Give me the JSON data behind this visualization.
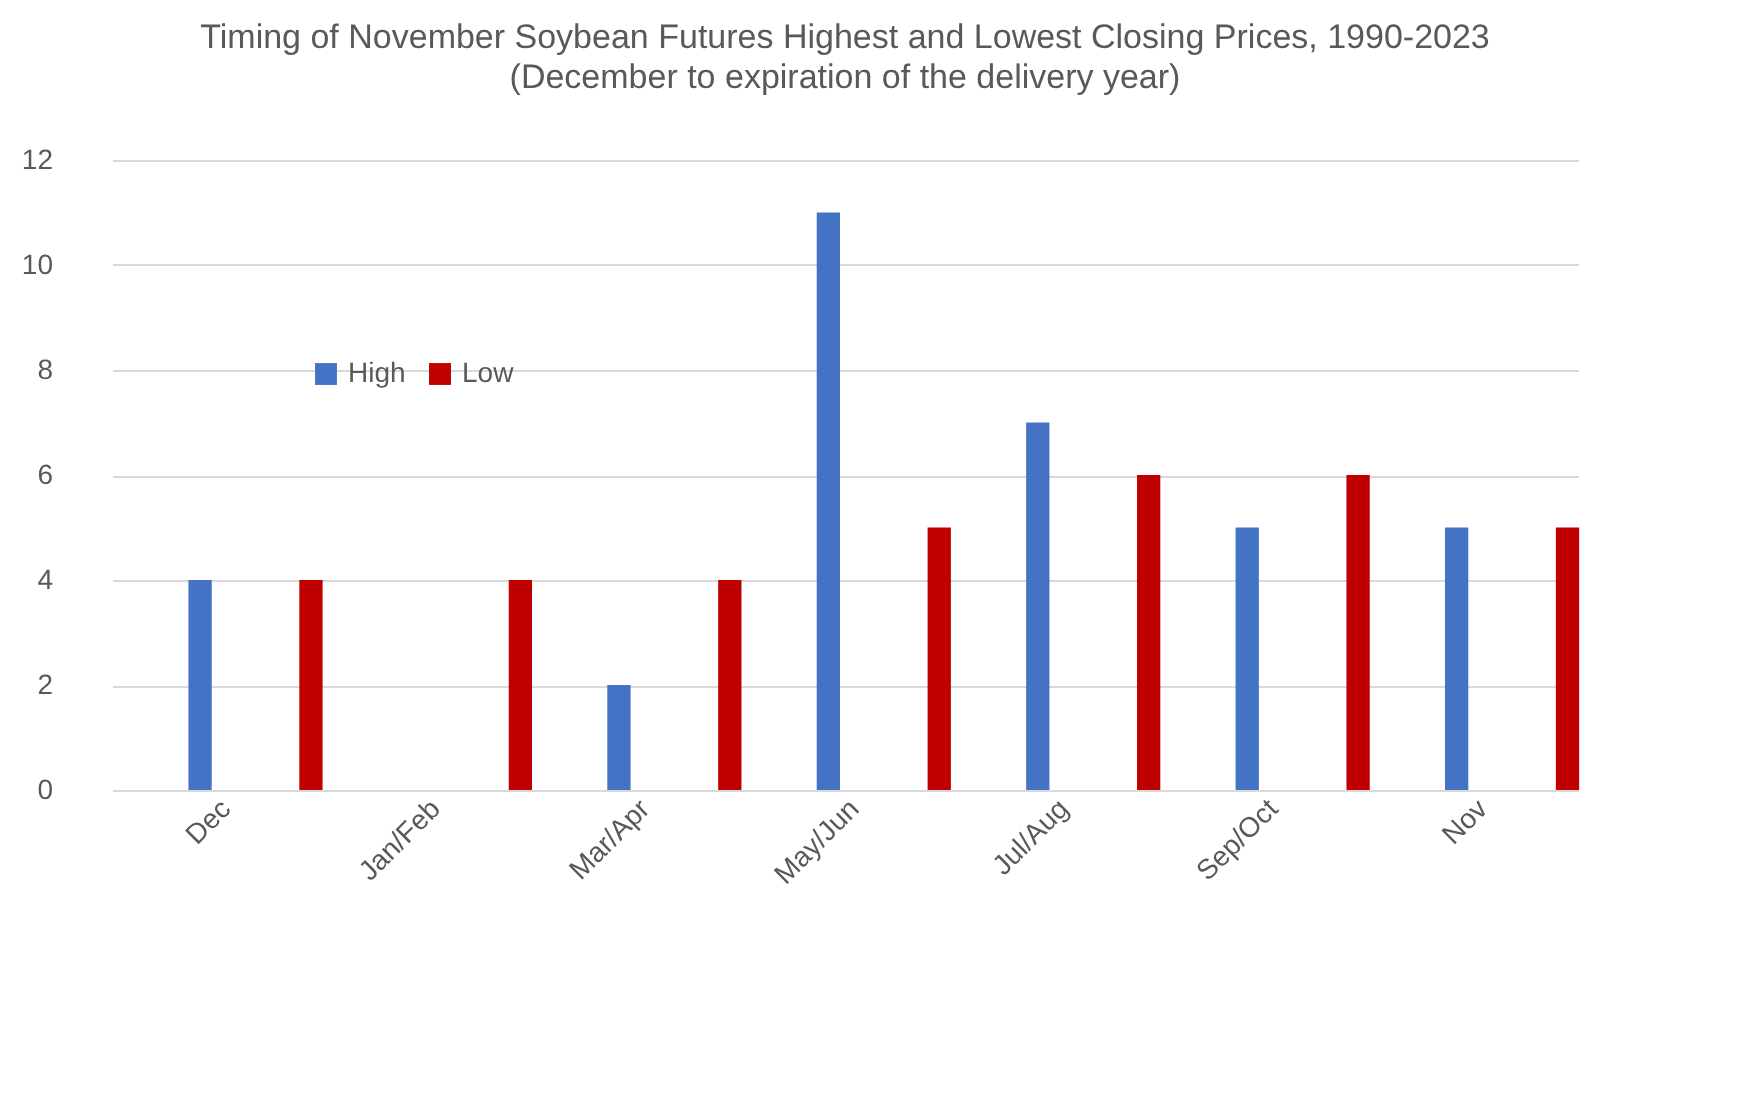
{
  "chart_data": {
    "type": "bar",
    "title": "Timing of November Soybean Futures Highest and Lowest Closing Prices, 1990-2023",
    "subtitle": "(December to expiration of the delivery year)",
    "categories": [
      "Dec",
      "Jan/Feb",
      "Mar/Apr",
      "May/Jun",
      "Jul/Aug",
      "Sep/Oct",
      "Nov"
    ],
    "series": [
      {
        "name": "High",
        "color": "#4472c4",
        "values": [
          4,
          0,
          2,
          11,
          7,
          5,
          5
        ]
      },
      {
        "name": "Low",
        "color": "#c00000",
        "values": [
          4,
          4,
          4,
          5,
          6,
          6,
          5
        ]
      }
    ],
    "ylim": [
      0,
      12
    ],
    "yticks": [
      0,
      2,
      4,
      6,
      8,
      10,
      12
    ],
    "grid": "y",
    "legend": "top left"
  }
}
